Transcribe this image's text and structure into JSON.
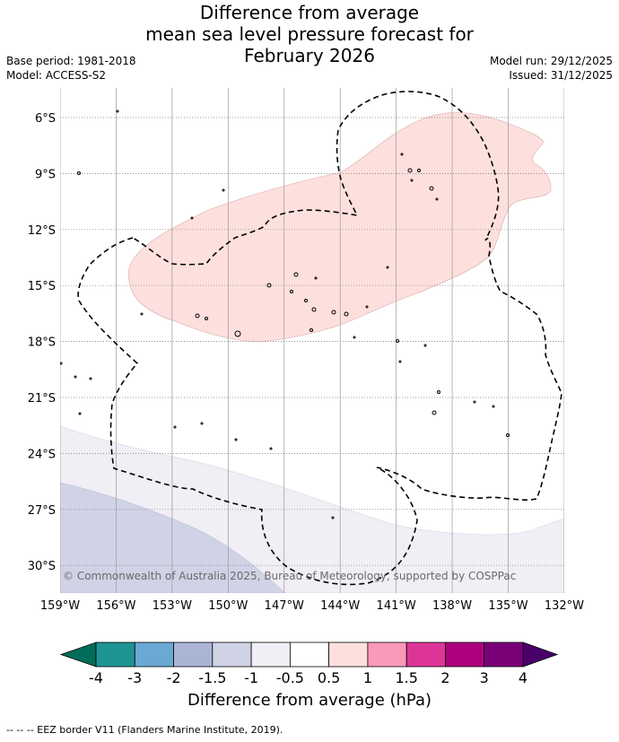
{
  "title": {
    "line1": "Difference from average",
    "line2": "mean sea level pressure forecast for",
    "line3": "February 2026"
  },
  "meta": {
    "base_period": "Base period: 1981-2018",
    "model": "Model: ACCESS-S2",
    "model_run": "Model run: 29/12/2025",
    "issued": "Issued: 31/12/2025"
  },
  "map": {
    "lon_labels": [
      "159°W",
      "156°W",
      "153°W",
      "150°W",
      "147°W",
      "144°W",
      "141°W",
      "138°W",
      "135°W",
      "132°W"
    ],
    "lat_labels": [
      "6°S",
      "9°S",
      "12°S",
      "15°S",
      "18°S",
      "21°S",
      "24°S",
      "27°S",
      "30°S"
    ],
    "copyright": "© Commonwealth of Australia 2025, Bureau of Meteorology, supported by COSPPac"
  },
  "colorbar": {
    "ticks": [
      "-4",
      "-3",
      "-2",
      "-1.5",
      "-1",
      "-0.5",
      "0.5",
      "1",
      "1.5",
      "2",
      "3",
      "4"
    ],
    "colors": [
      "#1f9494",
      "#6aa9d3",
      "#aab5d6",
      "#d0d2e6",
      "#f1eef5",
      "#ffffff",
      "#fde0dd",
      "#f99ab8",
      "#dd3497",
      "#ad017e",
      "#7a0177"
    ],
    "under_color": "#016c59",
    "over_color": "#49006a",
    "label": "Difference from average (hPa)"
  },
  "footer": {
    "legend": "--  --  -- EEZ border V11 (Flanders Marine Institute, 2019)."
  }
}
